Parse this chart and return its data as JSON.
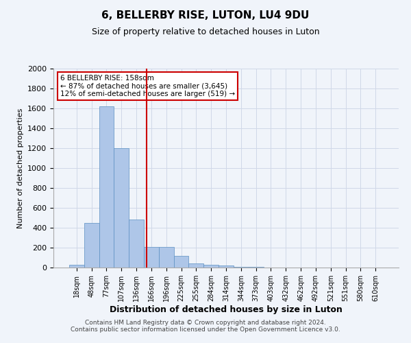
{
  "title": "6, BELLERBY RISE, LUTON, LU4 9DU",
  "subtitle": "Size of property relative to detached houses in Luton",
  "xlabel": "Distribution of detached houses by size in Luton",
  "ylabel": "Number of detached properties",
  "categories": [
    "18sqm",
    "48sqm",
    "77sqm",
    "107sqm",
    "136sqm",
    "166sqm",
    "196sqm",
    "225sqm",
    "255sqm",
    "284sqm",
    "314sqm",
    "344sqm",
    "373sqm",
    "403sqm",
    "432sqm",
    "462sqm",
    "492sqm",
    "521sqm",
    "551sqm",
    "580sqm",
    "610sqm"
  ],
  "values": [
    30,
    450,
    1620,
    1200,
    480,
    210,
    210,
    120,
    40,
    30,
    20,
    10,
    5,
    3,
    2,
    2,
    1,
    1,
    1,
    1,
    1
  ],
  "bar_color": "#aec6e8",
  "bar_edge_color": "#5a8fc2",
  "red_line_x": 4.67,
  "annotation_text": "6 BELLERBY RISE: 158sqm\n← 87% of detached houses are smaller (3,645)\n12% of semi-detached houses are larger (519) →",
  "annotation_box_color": "#ffffff",
  "annotation_box_edge": "#cc0000",
  "ylim": [
    0,
    2000
  ],
  "yticks": [
    0,
    200,
    400,
    600,
    800,
    1000,
    1200,
    1400,
    1600,
    1800,
    2000
  ],
  "grid_color": "#d0d8e8",
  "footer_line1": "Contains HM Land Registry data © Crown copyright and database right 2024.",
  "footer_line2": "Contains public sector information licensed under the Open Government Licence v3.0.",
  "background_color": "#f0f4fa",
  "plot_background_color": "#f0f4fa"
}
